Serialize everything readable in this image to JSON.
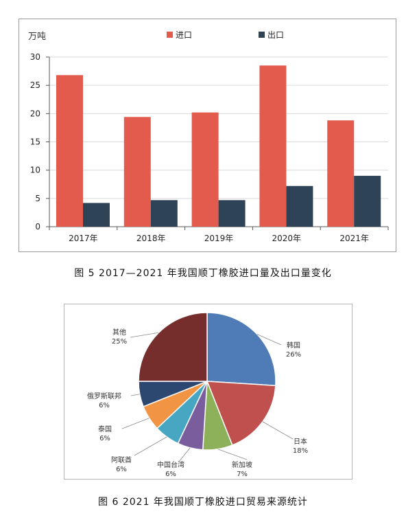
{
  "chart_data": [
    {
      "type": "bar",
      "ylabel": "万吨",
      "categories": [
        "2017年",
        "2018年",
        "2019年",
        "2020年",
        "2021年"
      ],
      "series": [
        {
          "name": "进口",
          "values": [
            26.8,
            19.4,
            20.2,
            28.5,
            18.8
          ],
          "color": "#e35b4d"
        },
        {
          "name": "出口",
          "values": [
            4.2,
            4.7,
            4.7,
            7.2,
            9.0
          ],
          "color": "#2f4356"
        }
      ],
      "ylim": [
        0,
        30
      ],
      "yticks": [
        0,
        5,
        10,
        15,
        20,
        25,
        30
      ],
      "grid": true,
      "legend_position": "top"
    },
    {
      "type": "pie",
      "slices": [
        {
          "label": "韩国",
          "value": 26,
          "pct_text": "26%",
          "color": "#4f7cb7"
        },
        {
          "label": "日本",
          "value": 18,
          "pct_text": "18%",
          "color": "#c0504d"
        },
        {
          "label": "新加坡",
          "value": 7,
          "pct_text": "7%",
          "color": "#8db15b"
        },
        {
          "label": "中国台湾",
          "value": 6,
          "pct_text": "6%",
          "color": "#7a5d9c"
        },
        {
          "label": "阿联酋",
          "value": 6,
          "pct_text": "6%",
          "color": "#47a6c2"
        },
        {
          "label": "泰国",
          "value": 6,
          "pct_text": "6%",
          "color": "#f19544"
        },
        {
          "label": "俄罗斯联邦",
          "value": 6,
          "pct_text": "6%",
          "color": "#2c4870"
        },
        {
          "label": "其他",
          "value": 25,
          "pct_text": "25%",
          "color": "#762e2c"
        }
      ]
    }
  ],
  "captions": {
    "fig5": "图 5  2017—2021 年我国顺丁橡胶进口量及出口量变化",
    "fig6": "图 6  2021 年我国顺丁橡胶进口贸易来源统计"
  }
}
